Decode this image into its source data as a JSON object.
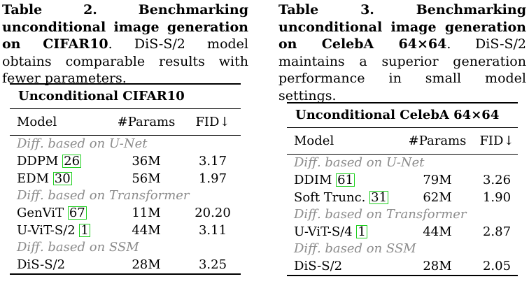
{
  "left": {
    "caption_bold": "Table 2. Benchmarking unconditional image generation on CIFAR10",
    "caption_rest": ". DiS-S/2 model obtains comparable results with fewer parameters.",
    "table": {
      "title": "Unconditional CIFAR10",
      "headers": [
        "Model",
        "#Params",
        "FID↓"
      ],
      "sections": [
        {
          "label": "Diff. based on U-Net",
          "rows": [
            {
              "model": "DDPM",
              "ref": "26",
              "params": "36M",
              "fid": "3.17"
            },
            {
              "model": "EDM",
              "ref": "30",
              "params": "56M",
              "fid": "1.97"
            }
          ]
        },
        {
          "label": "Diff. based on Transformer",
          "rows": [
            {
              "model": "GenViT",
              "ref": "67",
              "params": "11M",
              "fid": "20.20"
            },
            {
              "model": "U-ViT-S/2",
              "ref": "1",
              "params": "44M",
              "fid": "3.11"
            }
          ]
        },
        {
          "label": "Diff. based on SSM",
          "rows": [
            {
              "model": "DiS-S/2",
              "ref": "",
              "params": "28M",
              "fid": "3.25"
            }
          ]
        }
      ]
    }
  },
  "right": {
    "caption_bold": "Table 3. Benchmarking unconditional image generation on CelebA 64×64",
    "caption_rest": ". DiS-S/2 maintains a superior generation performance in small model settings.",
    "table": {
      "title": "Unconditional CelebA 64×64",
      "headers": [
        "Model",
        "#Params",
        "FID↓"
      ],
      "sections": [
        {
          "label": "Diff. based on U-Net",
          "rows": [
            {
              "model": "DDIM",
              "ref": "61",
              "params": "79M",
              "fid": "3.26"
            },
            {
              "model": "Soft Trunc.",
              "ref": "31",
              "params": "62M",
              "fid": "1.90"
            }
          ]
        },
        {
          "label": "Diff. based on Transformer",
          "rows": [
            {
              "model": "U-ViT-S/4",
              "ref": "1",
              "params": "44M",
              "fid": "2.87"
            }
          ]
        },
        {
          "label": "Diff. based on SSM",
          "rows": [
            {
              "model": "DiS-S/2",
              "ref": "",
              "params": "28M",
              "fid": "2.05"
            }
          ]
        }
      ]
    }
  }
}
